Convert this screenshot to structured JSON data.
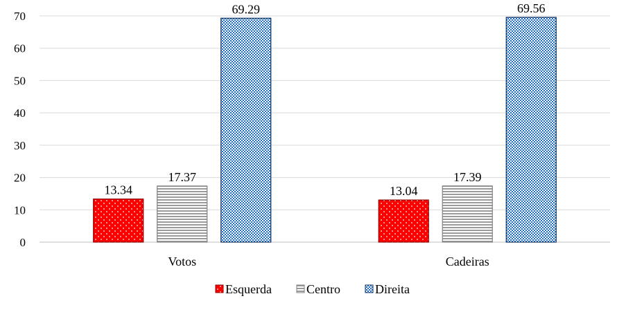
{
  "chart_data": {
    "type": "bar",
    "categories": [
      "Votos",
      "Cadeiras"
    ],
    "series": [
      {
        "name": "Esquerda",
        "values": [
          13.34,
          13.04
        ],
        "color": "#ff0000",
        "pattern": "white-dots"
      },
      {
        "name": "Centro",
        "values": [
          17.37,
          17.39
        ],
        "color": "#ffffff",
        "pattern": "gray-horizontal-stripes"
      },
      {
        "name": "Direita",
        "values": [
          69.29,
          69.56
        ],
        "color": "#1f6fc4",
        "pattern": "blue-white-checker"
      }
    ],
    "value_labels": [
      [
        "13.34",
        "13.04"
      ],
      [
        "17.37",
        "17.39"
      ],
      [
        "69.29",
        "69.56"
      ]
    ],
    "y_ticks": [
      "0",
      "10",
      "20",
      "30",
      "40",
      "50",
      "60",
      "70"
    ],
    "ylim": [
      0,
      70
    ],
    "grid": true,
    "legend_position": "bottom",
    "title": "",
    "xlabel": "",
    "ylabel": ""
  }
}
